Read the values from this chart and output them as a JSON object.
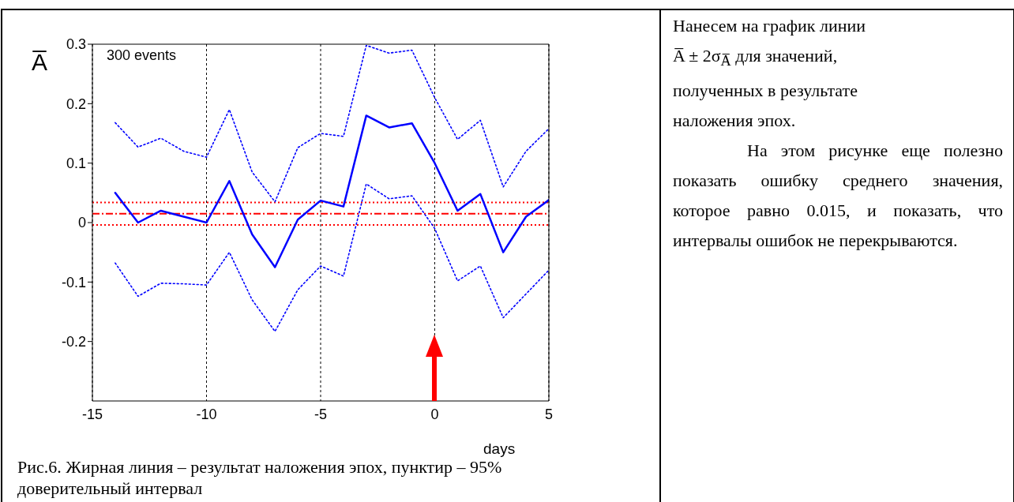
{
  "chart_data": {
    "type": "line",
    "xlabel": "days",
    "ylabel": "A̅",
    "x": [
      -14,
      -13,
      -12,
      -11,
      -10,
      -9,
      -8,
      -7,
      -6,
      -5,
      -4,
      -3,
      -2,
      -1,
      0,
      1,
      2,
      3,
      4,
      5
    ],
    "series": [
      {
        "color": "#0000ff",
        "line_style": "solid",
        "values": [
          0.05,
          0.0,
          0.02,
          0.01,
          0.0,
          0.07,
          -0.02,
          -0.075,
          0.005,
          0.037,
          0.027,
          0.18,
          0.16,
          0.167,
          0.1,
          0.02,
          0.048,
          -0.05,
          0.01,
          0.038
        ]
      },
      {
        "color": "#0000ff",
        "line_style": "dotted",
        "values": [
          0.168,
          0.127,
          0.142,
          0.12,
          0.11,
          0.19,
          0.085,
          0.035,
          0.126,
          0.15,
          0.145,
          0.298,
          0.285,
          0.29,
          0.21,
          0.14,
          0.172,
          0.06,
          0.12,
          0.158
        ]
      },
      {
        "color": "#0000ff",
        "line_style": "dotted",
        "values": [
          -0.068,
          -0.124,
          -0.102,
          -0.103,
          -0.105,
          -0.05,
          -0.13,
          -0.183,
          -0.113,
          -0.073,
          -0.09,
          0.065,
          0.04,
          0.045,
          -0.01,
          -0.098,
          -0.073,
          -0.16,
          -0.12,
          -0.08
        ]
      }
    ],
    "xlim": [
      -15,
      5
    ],
    "xticks": [
      -15,
      -10,
      -5,
      0,
      5
    ],
    "ylim": [
      -0.3,
      0.3
    ],
    "yticks": [
      -0.2,
      -0.1,
      0,
      0.1,
      0.2,
      0.3
    ],
    "grid": "x",
    "marker": "none",
    "ref_lines": [
      {
        "axis": "y",
        "value": 0.015,
        "color": "#ff0000",
        "line_style": "dashed"
      },
      {
        "axis": "y",
        "value": 0.034,
        "color": "#ff0000",
        "line_style": "dotted"
      },
      {
        "axis": "y",
        "value": -0.004,
        "color": "#ff0000",
        "line_style": "dotted"
      }
    ],
    "annotations": [
      "300 events",
      "Рис.6. Жирная линия – результат наложения эпох, пунктир – 95% доверительный интервал",
      "Нанесем на график линии",
      "A̅ ± 2σ$_{A̅}$ для значений,",
      "полученных в результате",
      "наложения эпох.",
      "На этом рисунке  еще полезно показать ошибку среднего значения, которое равно 0.015, и показать, что интервалы ошибок не перекрываются."
    ]
  }
}
